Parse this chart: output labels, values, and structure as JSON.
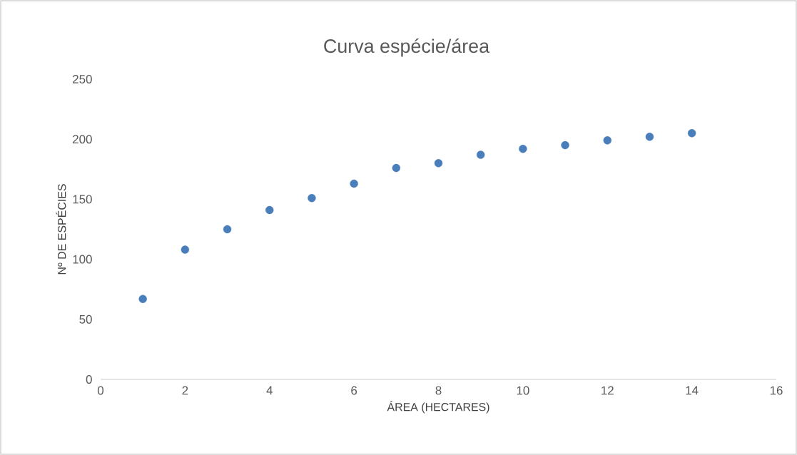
{
  "chart_data": {
    "type": "scatter",
    "title": "Curva espécie/área",
    "xlabel": "ÁREA (HECTARES)",
    "ylabel": "Nº DE ESPÉCIES",
    "x": [
      1,
      2,
      3,
      4,
      5,
      6,
      7,
      8,
      9,
      10,
      11,
      12,
      13,
      14
    ],
    "values": [
      67,
      108,
      125,
      141,
      151,
      163,
      176,
      180,
      187,
      192,
      195,
      199,
      202,
      205
    ],
    "color": "#4a7ebb",
    "xlim": [
      0,
      16
    ],
    "xticks": [
      0,
      2,
      4,
      6,
      8,
      10,
      12,
      14,
      16
    ],
    "ylim": [
      0,
      250
    ],
    "yticks": [
      0,
      50,
      100,
      150,
      200,
      250
    ]
  }
}
